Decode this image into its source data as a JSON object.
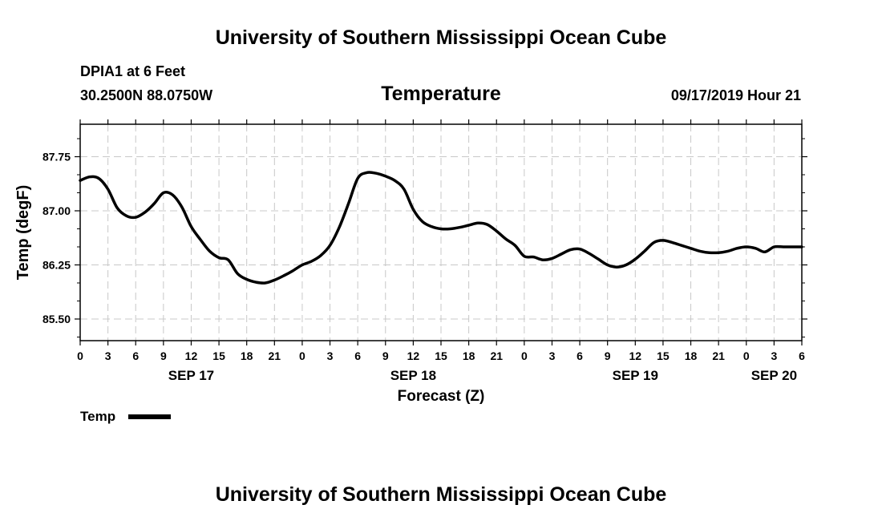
{
  "header": {
    "title": "University of Southern Mississippi Ocean Cube",
    "station": "DPIA1 at 6 Feet",
    "location": "30.2500N 88.0750W",
    "variable": "Temperature",
    "datetime": "09/17/2019 Hour 21"
  },
  "footer": {
    "title": "University of Southern Mississippi Ocean Cube"
  },
  "chart_data": {
    "type": "line",
    "title": "Temperature",
    "xlabel": "Forecast (Z)",
    "ylabel": "Temp (degF)",
    "x_range_hours": [
      0,
      78
    ],
    "ylim": [
      85.2,
      88.2
    ],
    "y_ticks": [
      {
        "value": 85.5,
        "label": "85.50"
      },
      {
        "value": 86.25,
        "label": "86.25"
      },
      {
        "value": 87.0,
        "label": "87.00"
      },
      {
        "value": 87.75,
        "label": "87.75"
      }
    ],
    "y_minor_ticks": [
      85.25,
      85.75,
      86.0,
      86.5,
      86.75,
      87.25,
      87.5,
      88.0
    ],
    "x_ticks": [
      {
        "hour": 0,
        "label": "0"
      },
      {
        "hour": 3,
        "label": "3"
      },
      {
        "hour": 6,
        "label": "6"
      },
      {
        "hour": 9,
        "label": "9"
      },
      {
        "hour": 12,
        "label": "12"
      },
      {
        "hour": 15,
        "label": "15"
      },
      {
        "hour": 18,
        "label": "18"
      },
      {
        "hour": 21,
        "label": "21"
      },
      {
        "hour": 24,
        "label": "0"
      },
      {
        "hour": 27,
        "label": "3"
      },
      {
        "hour": 30,
        "label": "6"
      },
      {
        "hour": 33,
        "label": "9"
      },
      {
        "hour": 36,
        "label": "12"
      },
      {
        "hour": 39,
        "label": "15"
      },
      {
        "hour": 42,
        "label": "18"
      },
      {
        "hour": 45,
        "label": "21"
      },
      {
        "hour": 48,
        "label": "0"
      },
      {
        "hour": 51,
        "label": "3"
      },
      {
        "hour": 54,
        "label": "6"
      },
      {
        "hour": 57,
        "label": "9"
      },
      {
        "hour": 60,
        "label": "12"
      },
      {
        "hour": 63,
        "label": "15"
      },
      {
        "hour": 66,
        "label": "18"
      },
      {
        "hour": 69,
        "label": "21"
      },
      {
        "hour": 72,
        "label": "0"
      },
      {
        "hour": 75,
        "label": "3"
      },
      {
        "hour": 78,
        "label": "6"
      }
    ],
    "date_labels": [
      {
        "hour": 12,
        "label": "SEP 17"
      },
      {
        "hour": 36,
        "label": "SEP 18"
      },
      {
        "hour": 60,
        "label": "SEP 19"
      },
      {
        "hour": 75,
        "label": "SEP 20"
      }
    ],
    "grid": true,
    "legend": {
      "position": "bottom-left"
    },
    "series": [
      {
        "name": "Temp",
        "color": "#000000",
        "x": [
          0,
          1,
          2,
          3,
          4,
          5,
          6,
          7,
          8,
          9,
          10,
          11,
          12,
          13,
          14,
          15,
          16,
          17,
          18,
          19,
          20,
          21,
          22,
          23,
          24,
          25,
          26,
          27,
          28,
          29,
          30,
          31,
          32,
          33,
          34,
          35,
          36,
          37,
          38,
          39,
          40,
          41,
          42,
          43,
          44,
          45,
          46,
          47,
          48,
          49,
          50,
          51,
          52,
          53,
          54,
          55,
          56,
          57,
          58,
          59,
          60,
          61,
          62,
          63,
          64,
          65,
          66,
          67,
          68,
          69,
          70,
          71,
          72,
          73,
          74,
          75,
          76,
          77,
          78
        ],
        "values": [
          87.42,
          87.47,
          87.45,
          87.3,
          87.04,
          86.93,
          86.91,
          86.98,
          87.1,
          87.25,
          87.22,
          87.05,
          86.78,
          86.6,
          86.44,
          86.35,
          86.32,
          86.13,
          86.05,
          86.01,
          86.0,
          86.04,
          86.1,
          86.17,
          86.25,
          86.3,
          86.38,
          86.52,
          86.77,
          87.1,
          87.45,
          87.53,
          87.52,
          87.48,
          87.42,
          87.3,
          87.02,
          86.85,
          86.78,
          86.75,
          86.75,
          86.77,
          86.8,
          86.83,
          86.81,
          86.72,
          86.61,
          86.52,
          86.37,
          86.36,
          86.32,
          86.34,
          86.4,
          86.46,
          86.47,
          86.41,
          86.33,
          86.25,
          86.22,
          86.25,
          86.33,
          86.44,
          86.56,
          86.59,
          86.56,
          86.52,
          86.48,
          86.44,
          86.42,
          86.42,
          86.44,
          86.48,
          86.5,
          86.48,
          86.43,
          86.5,
          86.5,
          86.5,
          86.5
        ]
      }
    ]
  }
}
